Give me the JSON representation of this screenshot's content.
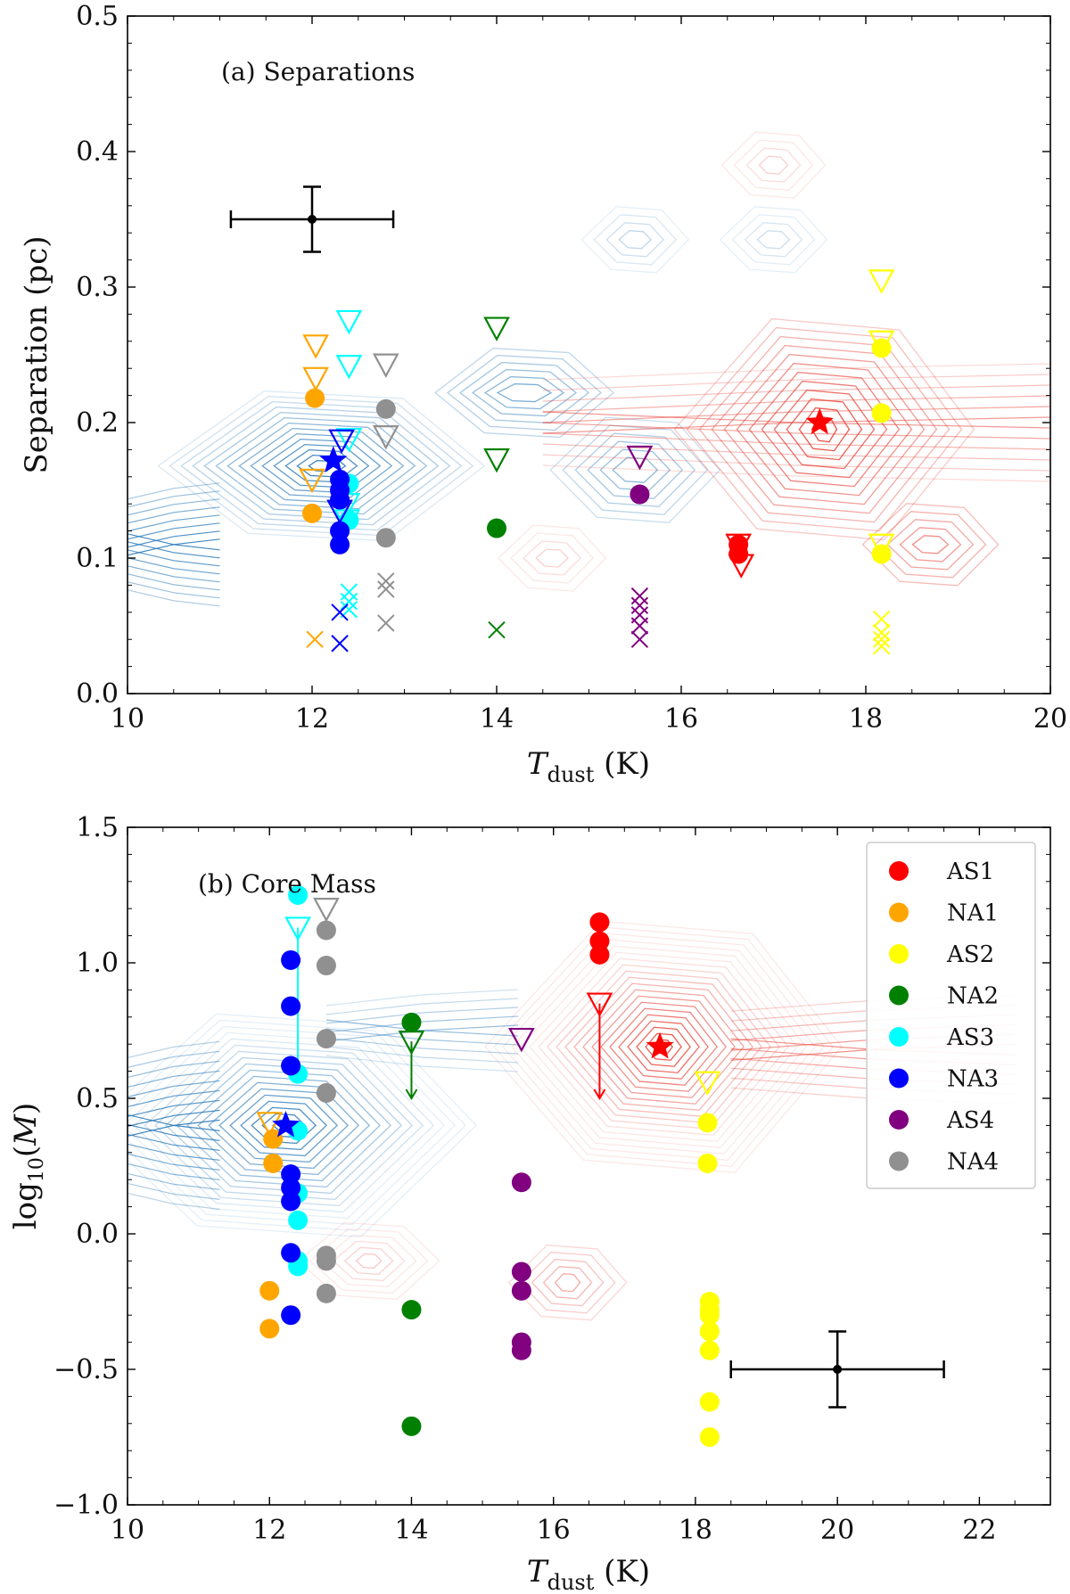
{
  "colors": {
    "AS1": "#ff0000",
    "NA1": "#ffa500",
    "AS2": "#ffff00",
    "NA2": "#008000",
    "AS3": "#00ffff",
    "NA3": "#0000ff",
    "AS4": "#800080",
    "NA4": "#909090",
    "contour_blue": "#2b7bba",
    "contour_red": "#e8443a",
    "errorbar": "#000000"
  },
  "legend": [
    "AS1",
    "NA1",
    "AS2",
    "NA2",
    "AS3",
    "NA3",
    "AS4",
    "NA4"
  ],
  "chart_data": [
    {
      "type": "scatter",
      "panel": "a",
      "title": "(a) Separations",
      "xlabel": "T_dust (K)",
      "ylabel": "Separation (pc)",
      "xlim": [
        10,
        20
      ],
      "ylim": [
        0.0,
        0.5
      ],
      "xticks": [
        10,
        12,
        14,
        16,
        18,
        20
      ],
      "xtick_labels": [
        "10",
        "12",
        "14",
        "16",
        "18",
        "20"
      ],
      "yticks": [
        0.0,
        0.1,
        0.2,
        0.3,
        0.4,
        0.5
      ],
      "ytick_labels": [
        "0.0",
        "0.1",
        "0.2",
        "0.3",
        "0.4",
        "0.5"
      ],
      "errorbar": {
        "x": 12.0,
        "y": 0.35,
        "xerr": 0.88,
        "yerr": 0.024
      },
      "series": [
        {
          "name": "AS1",
          "circles": [
            {
              "x": 16.62,
              "y": 0.11
            },
            {
              "x": 16.62,
              "y": 0.103
            }
          ],
          "triangles": [
            {
              "x": 16.62,
              "y": 0.11
            },
            {
              "x": 16.65,
              "y": 0.095
            }
          ],
          "crosses": [],
          "star": {
            "x": 17.5,
            "y": 0.2
          }
        },
        {
          "name": "NA1",
          "circles": [
            {
              "x": 12.03,
              "y": 0.218
            },
            {
              "x": 12.0,
              "y": 0.133
            }
          ],
          "triangles": [
            {
              "x": 12.04,
              "y": 0.257
            },
            {
              "x": 12.04,
              "y": 0.233
            },
            {
              "x": 12.0,
              "y": 0.158
            }
          ],
          "crosses": [
            {
              "x": 12.03,
              "y": 0.04
            }
          ]
        },
        {
          "name": "AS2",
          "circles": [
            {
              "x": 18.17,
              "y": 0.255
            },
            {
              "x": 18.17,
              "y": 0.207
            },
            {
              "x": 18.17,
              "y": 0.103
            }
          ],
          "triangles": [
            {
              "x": 18.17,
              "y": 0.305
            },
            {
              "x": 18.17,
              "y": 0.26
            },
            {
              "x": 18.17,
              "y": 0.11
            }
          ],
          "crosses": [
            {
              "x": 18.17,
              "y": 0.055
            },
            {
              "x": 18.17,
              "y": 0.045
            },
            {
              "x": 18.17,
              "y": 0.04
            },
            {
              "x": 18.17,
              "y": 0.035
            }
          ]
        },
        {
          "name": "NA2",
          "circles": [
            {
              "x": 14.0,
              "y": 0.122
            }
          ],
          "triangles": [
            {
              "x": 14.0,
              "y": 0.27
            },
            {
              "x": 14.0,
              "y": 0.173
            }
          ],
          "crosses": [
            {
              "x": 14.0,
              "y": 0.047
            }
          ]
        },
        {
          "name": "AS3",
          "circles": [
            {
              "x": 12.4,
              "y": 0.155
            },
            {
              "x": 12.4,
              "y": 0.128
            }
          ],
          "triangles": [
            {
              "x": 12.4,
              "y": 0.275
            },
            {
              "x": 12.4,
              "y": 0.242
            },
            {
              "x": 12.4,
              "y": 0.188
            },
            {
              "x": 12.38,
              "y": 0.14
            },
            {
              "x": 12.38,
              "y": 0.128
            }
          ],
          "crosses": [
            {
              "x": 12.4,
              "y": 0.075
            },
            {
              "x": 12.4,
              "y": 0.068
            },
            {
              "x": 12.4,
              "y": 0.062
            }
          ]
        },
        {
          "name": "NA3",
          "circles": [
            {
              "x": 12.3,
              "y": 0.158
            },
            {
              "x": 12.3,
              "y": 0.15
            },
            {
              "x": 12.3,
              "y": 0.143
            },
            {
              "x": 12.3,
              "y": 0.12
            },
            {
              "x": 12.3,
              "y": 0.11
            }
          ],
          "triangles": [
            {
              "x": 12.32,
              "y": 0.187
            },
            {
              "x": 12.3,
              "y": 0.135
            }
          ],
          "crosses": [
            {
              "x": 12.3,
              "y": 0.06
            },
            {
              "x": 12.3,
              "y": 0.037
            }
          ],
          "star": {
            "x": 12.23,
            "y": 0.172
          }
        },
        {
          "name": "AS4",
          "circles": [
            {
              "x": 15.55,
              "y": 0.147
            }
          ],
          "triangles": [
            {
              "x": 15.55,
              "y": 0.175
            }
          ],
          "crosses": [
            {
              "x": 15.55,
              "y": 0.072
            },
            {
              "x": 15.55,
              "y": 0.065
            },
            {
              "x": 15.55,
              "y": 0.058
            },
            {
              "x": 15.55,
              "y": 0.05
            },
            {
              "x": 15.55,
              "y": 0.04
            }
          ]
        },
        {
          "name": "NA4",
          "circles": [
            {
              "x": 12.8,
              "y": 0.21
            },
            {
              "x": 12.8,
              "y": 0.115
            }
          ],
          "triangles": [
            {
              "x": 12.8,
              "y": 0.243
            },
            {
              "x": 12.8,
              "y": 0.19
            }
          ],
          "crosses": [
            {
              "x": 12.8,
              "y": 0.083
            },
            {
              "x": 12.8,
              "y": 0.077
            },
            {
              "x": 12.8,
              "y": 0.052
            }
          ]
        }
      ]
    },
    {
      "type": "scatter",
      "panel": "b",
      "title": "(b) Core Mass",
      "xlabel": "T_dust (K)",
      "ylabel": "log10(M)",
      "xlim": [
        10,
        23
      ],
      "ylim": [
        -1.0,
        1.5
      ],
      "xticks": [
        10,
        12,
        14,
        16,
        18,
        20,
        22
      ],
      "xtick_labels": [
        "10",
        "12",
        "14",
        "16",
        "18",
        "20",
        "22"
      ],
      "yticks": [
        -1.0,
        -0.5,
        0.0,
        0.5,
        1.0,
        1.5
      ],
      "ytick_labels": [
        "−1.0",
        "−0.5",
        "0.0",
        "0.5",
        "1.0",
        "1.5"
      ],
      "errorbar": {
        "x": 20.0,
        "y": -0.5,
        "xerr": 1.5,
        "yerr": 0.14
      },
      "series": [
        {
          "name": "AS1",
          "circles": [
            {
              "x": 16.65,
              "y": 1.15
            },
            {
              "x": 16.65,
              "y": 1.08
            },
            {
              "x": 16.65,
              "y": 1.03
            }
          ],
          "triangles": [
            {
              "x": 16.65,
              "y": 0.85
            }
          ],
          "crosses": [],
          "star": {
            "x": 17.5,
            "y": 0.69
          },
          "arrow": {
            "x": 16.65,
            "y1": 0.85,
            "y2": 0.5
          }
        },
        {
          "name": "NA1",
          "circles": [
            {
              "x": 12.05,
              "y": 0.35
            },
            {
              "x": 12.05,
              "y": 0.26
            },
            {
              "x": 12.0,
              "y": -0.21
            },
            {
              "x": 12.0,
              "y": -0.35
            }
          ],
          "triangles": [
            {
              "x": 12.0,
              "y": 0.41
            }
          ],
          "crosses": []
        },
        {
          "name": "AS2",
          "circles": [
            {
              "x": 18.17,
              "y": 0.41
            },
            {
              "x": 18.17,
              "y": 0.26
            },
            {
              "x": 18.2,
              "y": -0.25
            },
            {
              "x": 18.2,
              "y": -0.28
            },
            {
              "x": 18.2,
              "y": -0.3
            },
            {
              "x": 18.2,
              "y": -0.36
            },
            {
              "x": 18.2,
              "y": -0.43
            },
            {
              "x": 18.2,
              "y": -0.62
            },
            {
              "x": 18.2,
              "y": -0.75
            }
          ],
          "triangles": [
            {
              "x": 18.17,
              "y": 0.56
            }
          ],
          "crosses": []
        },
        {
          "name": "NA2",
          "circles": [
            {
              "x": 14.0,
              "y": 0.78
            },
            {
              "x": 14.0,
              "y": -0.28
            },
            {
              "x": 14.0,
              "y": -0.71
            }
          ],
          "triangles": [
            {
              "x": 14.0,
              "y": 0.71
            }
          ],
          "crosses": [],
          "arrow": {
            "x": 14.0,
            "y1": 0.71,
            "y2": 0.5
          }
        },
        {
          "name": "AS3",
          "circles": [
            {
              "x": 12.4,
              "y": 1.25
            },
            {
              "x": 12.4,
              "y": 0.59
            },
            {
              "x": 12.4,
              "y": 0.38
            },
            {
              "x": 12.4,
              "y": 0.15
            },
            {
              "x": 12.4,
              "y": 0.05
            },
            {
              "x": 12.4,
              "y": -0.1
            },
            {
              "x": 12.4,
              "y": -0.12
            }
          ],
          "triangles": [
            {
              "x": 12.4,
              "y": 1.13
            }
          ],
          "crosses": [],
          "line": {
            "x": 12.4,
            "y1": 1.13,
            "y2": 0.59
          }
        },
        {
          "name": "NA3",
          "circles": [
            {
              "x": 12.3,
              "y": 1.01
            },
            {
              "x": 12.3,
              "y": 0.84
            },
            {
              "x": 12.3,
              "y": 0.62
            },
            {
              "x": 12.3,
              "y": 0.22
            },
            {
              "x": 12.3,
              "y": 0.17
            },
            {
              "x": 12.3,
              "y": 0.12
            },
            {
              "x": 12.3,
              "y": -0.07
            },
            {
              "x": 12.3,
              "y": -0.3
            }
          ],
          "triangles": [],
          "crosses": [],
          "star": {
            "x": 12.23,
            "y": 0.4
          }
        },
        {
          "name": "AS4",
          "circles": [
            {
              "x": 15.55,
              "y": 0.19
            },
            {
              "x": 15.55,
              "y": -0.14
            },
            {
              "x": 15.55,
              "y": -0.21
            },
            {
              "x": 15.55,
              "y": -0.4
            },
            {
              "x": 15.55,
              "y": -0.43
            }
          ],
          "triangles": [
            {
              "x": 15.55,
              "y": 0.72
            }
          ],
          "crosses": []
        },
        {
          "name": "NA4",
          "circles": [
            {
              "x": 12.8,
              "y": 1.12
            },
            {
              "x": 12.8,
              "y": 0.99
            },
            {
              "x": 12.8,
              "y": 0.72
            },
            {
              "x": 12.8,
              "y": 0.52
            },
            {
              "x": 12.8,
              "y": -0.08
            },
            {
              "x": 12.8,
              "y": -0.1
            },
            {
              "x": 12.8,
              "y": -0.22
            }
          ],
          "triangles": [
            {
              "x": 12.8,
              "y": 1.2
            }
          ],
          "crosses": []
        }
      ]
    }
  ]
}
